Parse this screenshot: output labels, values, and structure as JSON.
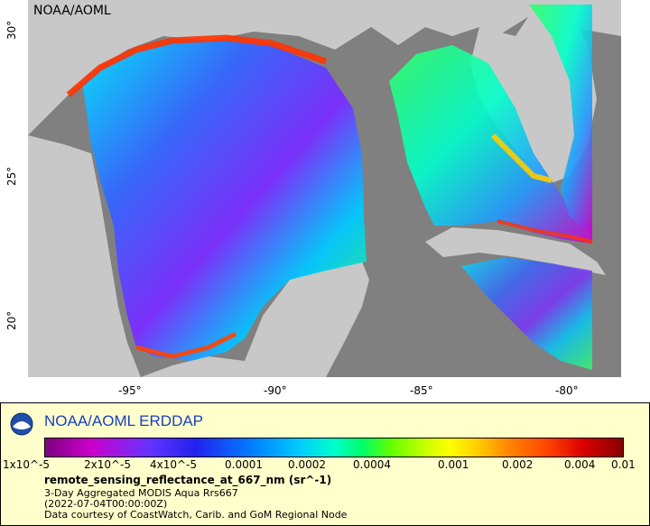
{
  "map": {
    "credit": "NOAA/AOML",
    "lon_ticks": [
      "-95°",
      "-90°",
      "-85°",
      "-80°"
    ],
    "lat_ticks": [
      "30°",
      "25°",
      "20°"
    ],
    "ocean_color": "#808080",
    "land_color": "#c8c8c8"
  },
  "legend": {
    "title": "NOAA/AOML ERDDAP",
    "logo": "noaa-logo",
    "colorbar_labels": [
      "1x10^-5",
      "2x10^-5",
      "4x10^-5",
      "0.0001",
      "0.0002",
      "0.0004",
      "0.001",
      "0.002",
      "0.004",
      "0.01"
    ],
    "variable": "remote_sensing_reflectance_at_667_nm (sr^-1)",
    "dataset": "3-Day Aggregated MODIS Aqua Rrs667",
    "time": "(2022-07-04T00:00:00Z)",
    "courtesy": "Data courtesy of CoastWatch, Carib. and GoM Regional Node",
    "scale": "log"
  }
}
